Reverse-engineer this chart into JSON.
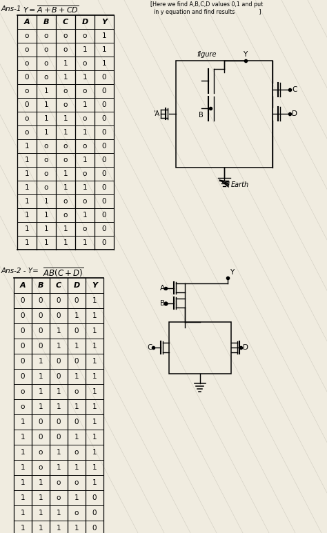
{
  "bg_color": "#f0ece0",
  "table1_headers": [
    "A",
    "B",
    "C",
    "D",
    "Y"
  ],
  "table1_data": [
    [
      "o",
      "o",
      "o",
      "o",
      "1"
    ],
    [
      "o",
      "o",
      "o",
      "1",
      "1"
    ],
    [
      "o",
      "o",
      "1",
      "o",
      "1"
    ],
    [
      "0",
      "o",
      "1",
      "1",
      "0"
    ],
    [
      "o",
      "1",
      "o",
      "o",
      "0"
    ],
    [
      "0",
      "1",
      "o",
      "1",
      "0"
    ],
    [
      "o",
      "1",
      "1",
      "o",
      "0"
    ],
    [
      "o",
      "1",
      "1",
      "1",
      "0"
    ],
    [
      "1",
      "o",
      "o",
      "o",
      "0"
    ],
    [
      "1",
      "o",
      "o",
      "1",
      "0"
    ],
    [
      "1",
      "o",
      "1",
      "o",
      "0"
    ],
    [
      "1",
      "o",
      "1",
      "1",
      "0"
    ],
    [
      "1",
      "1",
      "o",
      "o",
      "0"
    ],
    [
      "1",
      "1",
      "o",
      "1",
      "0"
    ],
    [
      "1",
      "1",
      "1",
      "o",
      "0"
    ],
    [
      "1",
      "1",
      "1",
      "1",
      "0"
    ]
  ],
  "table2_headers": [
    "A",
    "B",
    "C",
    "D",
    "Y"
  ],
  "table2_data": [
    [
      "0",
      "0",
      "0",
      "0",
      "1"
    ],
    [
      "0",
      "0",
      "0",
      "1",
      "1"
    ],
    [
      "0",
      "0",
      "1",
      "0",
      "1"
    ],
    [
      "0",
      "0",
      "1",
      "1",
      "1"
    ],
    [
      "0",
      "1",
      "0",
      "0",
      "1"
    ],
    [
      "0",
      "1",
      "0",
      "1",
      "1"
    ],
    [
      "o",
      "1",
      "1",
      "o",
      "1"
    ],
    [
      "o",
      "1",
      "1",
      "1",
      "1"
    ],
    [
      "1",
      "0",
      "0",
      "0",
      "1"
    ],
    [
      "1",
      "0",
      "0",
      "1",
      "1"
    ],
    [
      "1",
      "o",
      "1",
      "o",
      "1"
    ],
    [
      "1",
      "o",
      "1",
      "1",
      "1"
    ],
    [
      "1",
      "1",
      "o",
      "o",
      "1"
    ],
    [
      "1",
      "1",
      "o",
      "1",
      "0"
    ],
    [
      "1",
      "1",
      "1",
      "o",
      "0"
    ],
    [
      "1",
      "1",
      "1",
      "1",
      "0"
    ]
  ]
}
